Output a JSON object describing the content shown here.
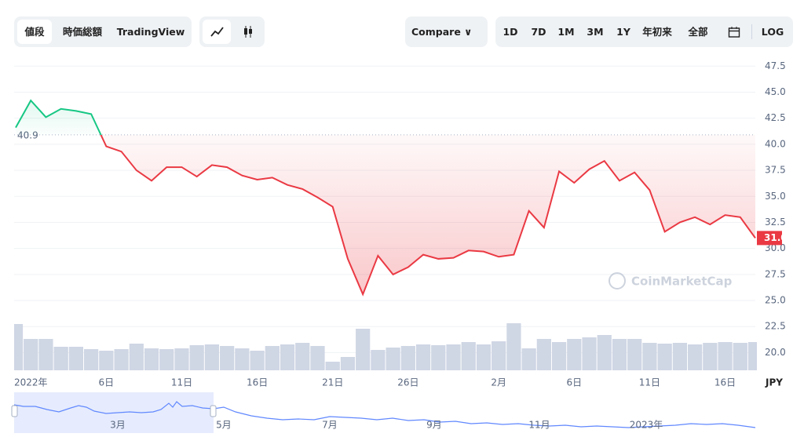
{
  "toolbar": {
    "tabs": [
      "値段",
      "時価総額",
      "TradingView"
    ],
    "compare": "Compare",
    "ranges": [
      "1D",
      "7D",
      "1M",
      "3M",
      "1Y",
      "年初来",
      "全部"
    ],
    "log": "LOG"
  },
  "chart_data": {
    "type": "line",
    "categories": [
      null,
      "2022年",
      null,
      null,
      null,
      null,
      "6日",
      null,
      null,
      null,
      null,
      "11日",
      null,
      null,
      null,
      null,
      "16日",
      null,
      null,
      null,
      null,
      "21日",
      null,
      null,
      null,
      null,
      "26日",
      null,
      null,
      null,
      null,
      null,
      "2月",
      null,
      null,
      null,
      null,
      "6日",
      null,
      null,
      null,
      null,
      "11日",
      null,
      null,
      null,
      null,
      "16日",
      null,
      null
    ],
    "values": [
      41.6,
      44.2,
      42.6,
      43.4,
      43.2,
      42.9,
      39.8,
      39.3,
      37.5,
      36.5,
      37.8,
      37.8,
      36.9,
      38.0,
      37.8,
      37.0,
      36.6,
      36.8,
      36.1,
      35.7,
      34.9,
      34.0,
      29.0,
      25.6,
      29.3,
      27.5,
      28.2,
      29.4,
      29.0,
      29.1,
      29.8,
      29.7,
      29.2,
      29.4,
      33.6,
      32.0,
      37.4,
      36.3,
      37.6,
      38.4,
      36.5,
      37.3,
      35.6,
      31.6,
      32.5,
      33.0,
      32.3,
      33.2,
      33.0,
      31.0
    ],
    "volume": [
      59,
      40,
      40,
      30,
      30,
      27,
      25,
      27,
      34,
      28,
      27,
      28,
      32,
      33,
      31,
      28,
      25,
      31,
      33,
      35,
      31,
      11,
      17,
      53,
      26,
      29,
      31,
      33,
      32,
      33,
      36,
      33,
      37,
      60,
      28,
      40,
      36,
      40,
      42,
      45,
      40,
      40,
      35,
      34,
      35,
      33,
      35,
      36,
      35,
      36
    ],
    "baseline": 40.9,
    "current_price": {
      "value": 31,
      "label": "31.0"
    },
    "currency": "JPY",
    "up_color": "#16c784",
    "down_color": "#ea3943",
    "volume_color": "#cfd6e4",
    "ylim": [
      18.3,
      48.2
    ],
    "yticks": [
      {
        "value": 20,
        "label": "20.0"
      },
      22.5,
      {
        "value": 25,
        "label": "25.0"
      },
      27.5,
      {
        "value": 30,
        "label": "30.0"
      },
      32.5,
      {
        "value": 35,
        "label": "35.0"
      },
      37.5,
      {
        "value": 40,
        "label": "40.0"
      },
      42.5,
      {
        "value": 45,
        "label": "45.0"
      },
      47.5
    ],
    "grid": true,
    "watermark": "CoinMarketCap"
  },
  "navigator": {
    "labels": [
      "3月",
      "5月",
      "7月",
      "9月",
      "11月",
      "2023年"
    ]
  }
}
